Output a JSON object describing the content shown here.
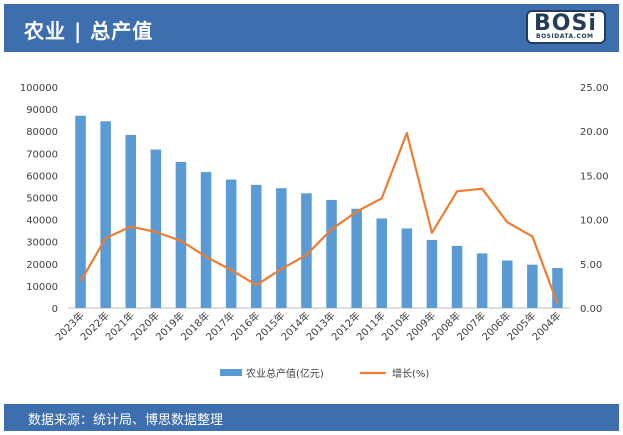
{
  "header": {
    "title": "农业 | 总产值"
  },
  "logo": {
    "text": "BOSi",
    "subtext": "BOSIDATA.COM"
  },
  "footer": {
    "source": "数据来源：统计局、博思数据整理"
  },
  "colors": {
    "bar": "#5b9bd5",
    "line": "#ed7d31",
    "band": "#3d6fae"
  },
  "chart_data": {
    "type": "bar",
    "categories": [
      "2023年",
      "2022年",
      "2021年",
      "2020年",
      "2019年",
      "2018年",
      "2017年",
      "2016年",
      "2015年",
      "2014年",
      "2013年",
      "2012年",
      "2011年",
      "2010年",
      "2009年",
      "2008年",
      "2007年",
      "2006年",
      "2005年",
      "2004年"
    ],
    "series": [
      {
        "name": "农业总产值(亿元)",
        "type": "bar",
        "axis": "left",
        "values": [
          87000,
          84500,
          78300,
          71700,
          66100,
          61500,
          58100,
          55700,
          54200,
          51900,
          48900,
          44900,
          40500,
          36000,
          30800,
          28100,
          24700,
          21500,
          19600,
          18100
        ]
      },
      {
        "name": "增长(%)",
        "type": "line",
        "axis": "right",
        "values": [
          3.0,
          7.9,
          9.2,
          8.6,
          7.6,
          5.8,
          4.3,
          2.6,
          4.4,
          6.0,
          8.9,
          10.9,
          12.4,
          19.8,
          8.5,
          13.2,
          13.5,
          9.7,
          8.1,
          0.5
        ]
      }
    ],
    "yleft": {
      "ylim": [
        0,
        100000
      ],
      "ticks": [
        0,
        10000,
        20000,
        30000,
        40000,
        50000,
        60000,
        70000,
        80000,
        90000,
        100000
      ]
    },
    "yright": {
      "ylim": [
        0,
        25
      ],
      "ticks": [
        "0.00",
        "5.00",
        "10.00",
        "15.00",
        "20.00",
        "25.00"
      ]
    },
    "grid": false,
    "legend": "bottom"
  }
}
